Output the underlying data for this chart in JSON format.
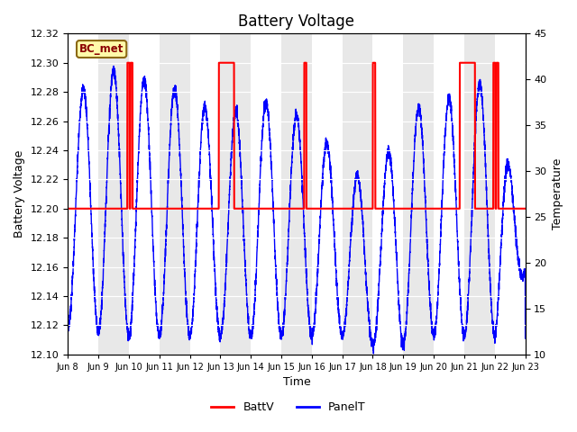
{
  "title": "Battery Voltage",
  "xlabel": "Time",
  "ylabel_left": "Battery Voltage",
  "ylabel_right": "Temperature",
  "xlim": [
    0,
    15
  ],
  "ylim_left": [
    12.1,
    12.32
  ],
  "ylim_right": [
    10,
    45
  ],
  "yticks_left": [
    12.1,
    12.12,
    12.14,
    12.16,
    12.18,
    12.2,
    12.22,
    12.24,
    12.26,
    12.28,
    12.3,
    12.32
  ],
  "yticks_right": [
    10,
    15,
    20,
    25,
    30,
    35,
    40,
    45
  ],
  "xtick_labels": [
    "Jun 8",
    "Jun 9",
    "Jun 10",
    "Jun 11",
    "Jun 12",
    "Jun 13",
    "Jun 14",
    "Jun 15",
    "Jun 16",
    "Jun 17",
    "Jun 18",
    "Jun 19",
    "Jun 20",
    "Jun 21",
    "Jun 22",
    "Jun 23"
  ],
  "xtick_positions": [
    0,
    1,
    2,
    3,
    4,
    5,
    6,
    7,
    8,
    9,
    10,
    11,
    12,
    13,
    14,
    15
  ],
  "battv_color": "#FF0000",
  "panelt_color": "#0000FF",
  "legend_labels": [
    "BattV",
    "PanelT"
  ],
  "bc_met_label": "BC_met",
  "bg_color": "#ffffff",
  "band_color": "#e8e8e8",
  "batt_base": 12.2,
  "batt_high": 12.3,
  "temp_min_mapped": 12.1,
  "temp_max_mapped": 12.32,
  "temp_axis_min": 10,
  "temp_axis_max": 45
}
